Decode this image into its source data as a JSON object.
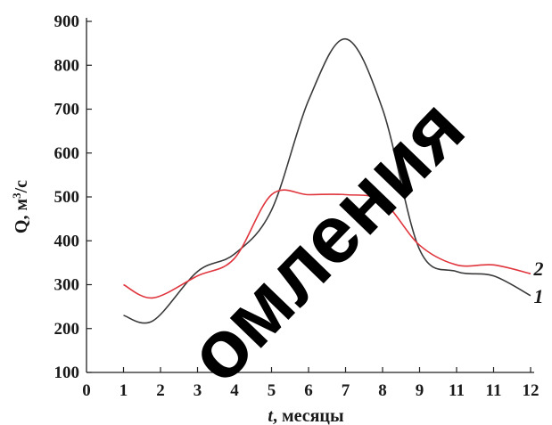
{
  "chart_data": {
    "type": "line",
    "xlabel_var": "t",
    "xlabel_rest": ", месяцы",
    "ylabel_main": "Q, м",
    "ylabel_sup": "3",
    "ylabel_tail": "/с",
    "ylim": [
      100,
      900
    ],
    "yticks": [
      100,
      200,
      300,
      400,
      500,
      600,
      700,
      800,
      900
    ],
    "xtick_labels": [
      "0",
      "1",
      "2",
      "3",
      "4",
      "5",
      "6",
      "7",
      "8",
      "9",
      "11",
      "11",
      "12"
    ],
    "x": [
      1,
      1.8,
      3,
      4,
      5,
      6,
      7,
      8,
      9,
      10,
      11,
      12
    ],
    "series": [
      {
        "name": "1",
        "color": "#3a3a3a",
        "values": [
          230,
          218,
          330,
          370,
          470,
          720,
          860,
          700,
          380,
          330,
          320,
          275
        ]
      },
      {
        "name": "2",
        "color": "#e0353d",
        "values": [
          300,
          270,
          320,
          360,
          505,
          505,
          505,
          490,
          390,
          345,
          345,
          325
        ]
      }
    ],
    "grid": false
  },
  "watermark": "омления"
}
